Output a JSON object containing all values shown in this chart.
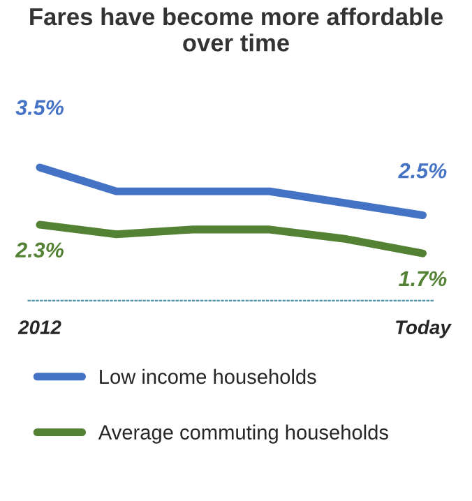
{
  "chart_data": {
    "type": "line",
    "title": "Fares have become more affordable over time",
    "categories": [
      "2012",
      null,
      null,
      null,
      null,
      "Today"
    ],
    "series": [
      {
        "name": "Low income households",
        "color": "#4472c4",
        "values": [
          3.5,
          3.0,
          3.0,
          3.0,
          2.75,
          2.5
        ],
        "value_labels": [
          "3.5%",
          null,
          null,
          null,
          null,
          "2.5%"
        ]
      },
      {
        "name": "Average commuting households",
        "color": "#548235",
        "values": [
          2.3,
          2.1,
          2.2,
          2.2,
          2.0,
          1.7
        ],
        "value_labels": [
          "2.3%",
          null,
          null,
          null,
          null,
          "1.7%"
        ]
      }
    ],
    "legend": "bottom",
    "grid": false,
    "marker": "none",
    "line_style": "solid"
  }
}
